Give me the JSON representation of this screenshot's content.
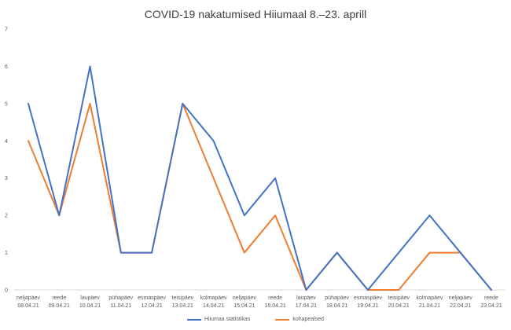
{
  "chart_data": {
    "type": "line",
    "title": "COVID-19 nakatumised Hiiumaal 8.–23. aprill",
    "categories": [
      {
        "day": "neljapäev",
        "date": "08.04.21"
      },
      {
        "day": "reede",
        "date": "09.04.21"
      },
      {
        "day": "laupäev",
        "date": "10.04.21"
      },
      {
        "day": "pühapäev",
        "date": "11.04.21"
      },
      {
        "day": "esmaspäev",
        "date": "12.04.21"
      },
      {
        "day": "teisipäev",
        "date": "13.04.21"
      },
      {
        "day": "kolmapäev",
        "date": "14.04.21"
      },
      {
        "day": "neljapäev",
        "date": "15.04.21"
      },
      {
        "day": "reede",
        "date": "16.04.21"
      },
      {
        "day": "laupäev",
        "date": "17.04.21"
      },
      {
        "day": "pühapäev",
        "date": "18.04.21"
      },
      {
        "day": "esmaspäev",
        "date": "19.04.21"
      },
      {
        "day": "teisipäev",
        "date": "20.04.21"
      },
      {
        "day": "kolmapäev",
        "date": "21.04.21"
      },
      {
        "day": "neljapäev",
        "date": "22.04.21"
      },
      {
        "day": "reede",
        "date": "23.04.21"
      }
    ],
    "series": [
      {
        "name": "Hiiumaa statistikas",
        "color": "#4472C4",
        "values": [
          5,
          2,
          6,
          1,
          1,
          5,
          4,
          2,
          3,
          0,
          1,
          0,
          1,
          2,
          1,
          0
        ]
      },
      {
        "name": "kohapealsed",
        "color": "#ED7D31",
        "values": [
          4,
          2,
          5,
          1,
          1,
          5,
          3,
          1,
          2,
          0,
          1,
          0,
          0,
          1,
          1,
          0
        ]
      }
    ],
    "ylim": [
      0,
      7
    ],
    "yticks": [
      0,
      1,
      2,
      3,
      4,
      5,
      6,
      7
    ],
    "grid": false,
    "legend": "bottom"
  }
}
